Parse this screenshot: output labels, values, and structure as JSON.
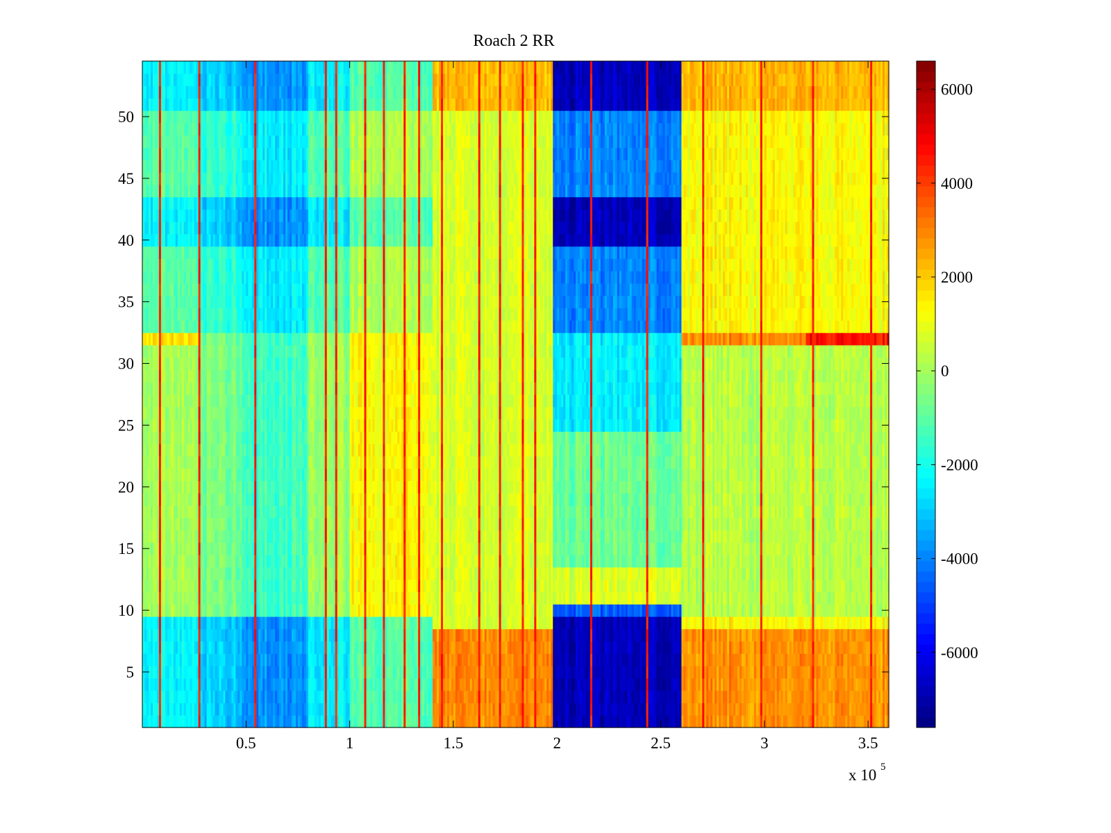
{
  "chart_data": {
    "type": "heatmap",
    "title": "Roach 2 RR",
    "xlabel": "",
    "ylabel": "",
    "x_multiplier_label": {
      "base": "x 10",
      "exponent": "5"
    },
    "xlim": [
      0,
      3.6
    ],
    "ylim": [
      0.5,
      54.5
    ],
    "x_ticks": [
      0.5,
      1,
      1.5,
      2,
      2.5,
      3,
      3.5
    ],
    "x_tick_labels": [
      "0.5",
      "1",
      "1.5",
      "2",
      "2.5",
      "3",
      "3.5"
    ],
    "y_ticks": [
      5,
      10,
      15,
      20,
      25,
      30,
      35,
      40,
      45,
      50
    ],
    "y_tick_labels": [
      "5",
      "10",
      "15",
      "20",
      "25",
      "30",
      "35",
      "40",
      "45",
      "50"
    ],
    "colorbar": {
      "range": [
        -7600,
        6600
      ],
      "ticks": [
        -6000,
        -4000,
        -2000,
        0,
        2000,
        4000,
        6000
      ],
      "tick_labels": [
        "-6000",
        "-4000",
        "-2000",
        "0",
        "2000",
        "4000",
        "6000"
      ],
      "colormap": "jet"
    },
    "rows": 54,
    "columns": 360,
    "row_values": [],
    "x_segments": [
      {
        "x0": 0.0,
        "x1": 0.28,
        "base": -900
      },
      {
        "x0": 0.28,
        "x1": 0.48,
        "base": -1500
      },
      {
        "x0": 0.48,
        "x1": 0.8,
        "base": -2300
      },
      {
        "x0": 0.8,
        "x1": 1.0,
        "base": -900
      },
      {
        "x0": 1.0,
        "x1": 1.4,
        "base": 400
      },
      {
        "x0": 1.4,
        "x1": 1.98,
        "base": 1500
      },
      {
        "x0": 1.98,
        "x1": 2.6,
        "base": -6000
      },
      {
        "x0": 2.6,
        "x1": 3.6,
        "base": 1700
      }
    ],
    "red_streaks_x": [
      0.08,
      0.27,
      0.54,
      0.88,
      0.93,
      1.07,
      1.16,
      1.26,
      1.33,
      1.44,
      1.62,
      1.72,
      1.83,
      1.89,
      2.16,
      2.43,
      2.7,
      2.98,
      3.23,
      3.51
    ]
  }
}
